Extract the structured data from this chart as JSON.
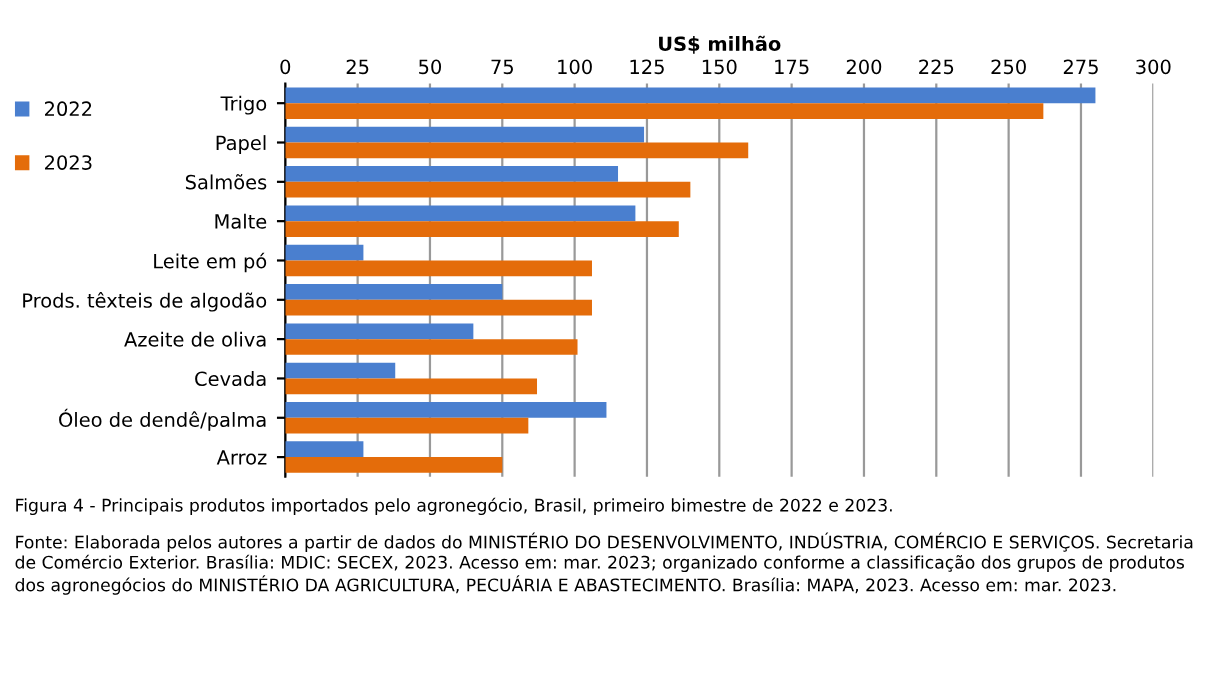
{
  "chart_data": {
    "type": "bar",
    "orientation": "horizontal",
    "xlabel": "US$ milhão",
    "categories": [
      "Trigo",
      "Papel",
      "Salmões",
      "Malte",
      "Leite em pó",
      "Prods. têxteis de algodão",
      "Azeite de oliva",
      "Cevada",
      "Óleo de dendê/palma",
      "Arroz"
    ],
    "series": [
      {
        "name": "2022",
        "color": "#4a7fcf",
        "values": [
          280,
          124,
          115,
          121,
          27,
          75,
          65,
          38,
          111,
          27
        ]
      },
      {
        "name": "2023",
        "color": "#e46c0a",
        "values": [
          262,
          160,
          140,
          136,
          106,
          106,
          101,
          87,
          84,
          75
        ]
      }
    ],
    "xlim": [
      0,
      300
    ],
    "xticks": [
      0,
      25,
      50,
      75,
      100,
      125,
      150,
      175,
      200,
      225,
      250,
      275,
      300
    ],
    "grid": "x",
    "legend": "top left",
    "annotations": [
      "Figura 4 - Principais produtos importados pelo agronegócio, Brasil, primeiro bimestre de 2022 e 2023.",
      "Fonte: Elaborada pelos autores a partir de dados do MINISTÉRIO DO DESENVOLVIMENTO, INDÚSTRIA, COMÉRCIO E SERVIÇOS. Secretaria de Comércio Exterior. Brasília: MDIC: SECEX, 2023. Acesso em: mar. 2023; organizado conforme a classificação dos grupos de produtos dos agronegócios do MINISTÉRIO DA AGRICULTURA, PECUÁRIA E ABASTECIMENTO. Brasília: MAPA, 2023. Acesso em: mar. 2023."
    ]
  }
}
